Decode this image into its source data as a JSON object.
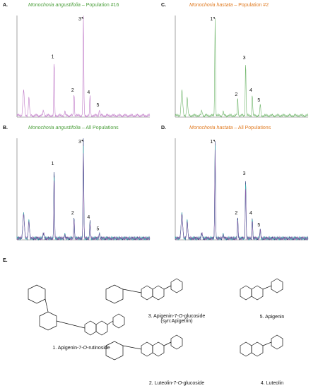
{
  "figure": {
    "panels": [
      {
        "id": "A",
        "label": "A.",
        "species": "Monochoria angustifolia",
        "population": " – Population #16",
        "color": "#4a9e3a",
        "trace": [
          "#c07ac8"
        ],
        "peaks": [
          {
            "n": "1",
            "rt": 0.28,
            "h": 0.56
          },
          {
            "n": "2",
            "rt": 0.43,
            "h": 0.22
          },
          {
            "n": "3",
            "rt": 0.5,
            "h": 1.0,
            "arrow": true
          },
          {
            "n": "4",
            "rt": 0.55,
            "h": 0.2
          },
          {
            "n": "5",
            "rt": 0.62,
            "h": 0.07
          }
        ]
      },
      {
        "id": "C",
        "label": "C.",
        "species": "Monochoria hastata",
        "population": " – Population #2",
        "color": "#e07a20",
        "trace": [
          "#6fb56a"
        ],
        "peaks": [
          {
            "n": "1",
            "rt": 0.3,
            "h": 1.0,
            "arrow": true
          },
          {
            "n": "2",
            "rt": 0.47,
            "h": 0.18
          },
          {
            "n": "3",
            "rt": 0.53,
            "h": 0.55
          },
          {
            "n": "4",
            "rt": 0.58,
            "h": 0.22
          },
          {
            "n": "5",
            "rt": 0.64,
            "h": 0.12
          }
        ]
      },
      {
        "id": "B",
        "label": "B.",
        "species": "Monochoria angustifolia",
        "population": " – All Populations",
        "color": "#4a9e3a",
        "trace": [
          "#2a3a7a",
          "#3db7b0",
          "#8a5aa8"
        ],
        "peaks": [
          {
            "n": "1",
            "rt": 0.28,
            "h": 0.72
          },
          {
            "n": "2",
            "rt": 0.43,
            "h": 0.22
          },
          {
            "n": "3",
            "rt": 0.5,
            "h": 1.0,
            "arrow": true
          },
          {
            "n": "4",
            "rt": 0.55,
            "h": 0.18
          },
          {
            "n": "5",
            "rt": 0.62,
            "h": 0.06
          }
        ]
      },
      {
        "id": "D",
        "label": "D.",
        "species": "Monochoria hastata",
        "population": " – All Populations",
        "color": "#e07a20",
        "trace": [
          "#2a3a7a",
          "#3db7b0",
          "#8a5aa8"
        ],
        "peaks": [
          {
            "n": "1",
            "rt": 0.3,
            "h": 1.0,
            "arrow": true
          },
          {
            "n": "2",
            "rt": 0.47,
            "h": 0.22
          },
          {
            "n": "3",
            "rt": 0.53,
            "h": 0.62
          },
          {
            "n": "4",
            "rt": 0.58,
            "h": 0.22
          },
          {
            "n": "5",
            "rt": 0.64,
            "h": 0.1
          }
        ]
      }
    ],
    "structures_label": "E.",
    "compounds": [
      {
        "n": "1",
        "line1": "1. Apigenin-7-",
        "ital": "O",
        "line1b": "-rutinoside",
        "line2": ""
      },
      {
        "n": "3",
        "line1": "3. Apigenin-7-",
        "ital": "O",
        "line1b": "-glucoside",
        "line2": "(syn:Apigetrin)"
      },
      {
        "n": "5",
        "line1": "5. Apigenin",
        "ital": "",
        "line1b": "",
        "line2": ""
      },
      {
        "n": "2",
        "line1": "2. Luteolin-7-",
        "ital": "O",
        "line1b": "-glucoside",
        "line2": ""
      },
      {
        "n": "4",
        "line1": "4. Luteolin",
        "ital": "",
        "line1b": "",
        "line2": ""
      }
    ]
  }
}
